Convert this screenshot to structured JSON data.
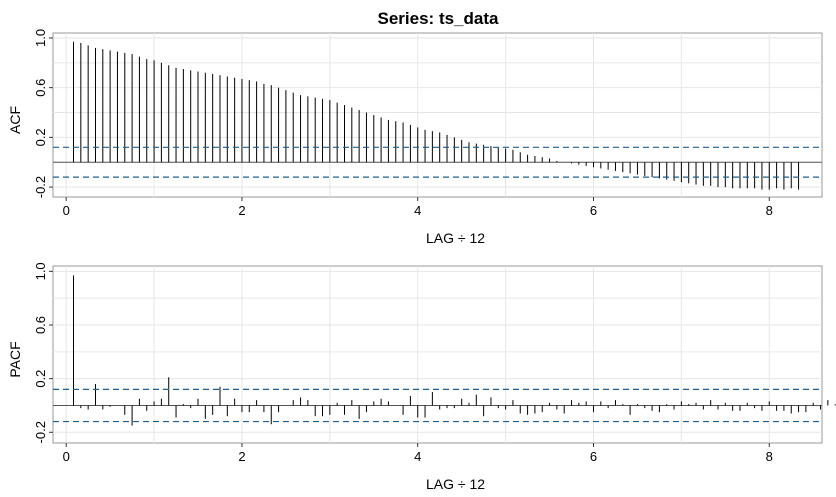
{
  "figure": {
    "title": "Series:  ts_data"
  },
  "colors": {
    "bar": "#000000",
    "ci_line": "#1f5f8b",
    "grid": "#e6e6e6",
    "frame": "#999999",
    "zero": "#555555"
  },
  "chart_data": [
    {
      "type": "bar",
      "name": "acf-panel",
      "title": "Series:  ts_data",
      "xlabel": "LAG ÷ 12",
      "ylabel": "ACF",
      "xlim": [
        -0.15,
        8.6
      ],
      "ylim": [
        -0.28,
        1.04
      ],
      "xticks": [
        0,
        2,
        4,
        6,
        8
      ],
      "xtick_labels": [
        "0",
        "2",
        "4",
        "6",
        "8"
      ],
      "yticks": [
        -0.2,
        0.2,
        0.6,
        1.0
      ],
      "ytick_labels": [
        "-0.2",
        "0.2",
        "0.6",
        "1.0"
      ],
      "grid": true,
      "ci_band": [
        -0.12,
        0.12
      ],
      "x_step": 0.0833333,
      "values": [
        0.97,
        0.96,
        0.94,
        0.92,
        0.91,
        0.9,
        0.89,
        0.88,
        0.87,
        0.85,
        0.83,
        0.82,
        0.8,
        0.78,
        0.76,
        0.75,
        0.74,
        0.73,
        0.72,
        0.71,
        0.7,
        0.69,
        0.68,
        0.67,
        0.66,
        0.65,
        0.63,
        0.62,
        0.6,
        0.58,
        0.56,
        0.54,
        0.53,
        0.52,
        0.51,
        0.5,
        0.48,
        0.46,
        0.44,
        0.42,
        0.4,
        0.38,
        0.36,
        0.34,
        0.33,
        0.32,
        0.3,
        0.28,
        0.26,
        0.25,
        0.24,
        0.22,
        0.2,
        0.18,
        0.16,
        0.15,
        0.14,
        0.13,
        0.12,
        0.11,
        0.1,
        0.08,
        0.06,
        0.05,
        0.04,
        0.03,
        0.01,
        0.0,
        -0.01,
        -0.02,
        -0.03,
        -0.04,
        -0.05,
        -0.06,
        -0.07,
        -0.08,
        -0.09,
        -0.1,
        -0.11,
        -0.12,
        -0.13,
        -0.14,
        -0.15,
        -0.16,
        -0.17,
        -0.18,
        -0.19,
        -0.19,
        -0.2,
        -0.2,
        -0.21,
        -0.21,
        -0.21,
        -0.21,
        -0.22,
        -0.22,
        -0.21,
        -0.22,
        -0.21,
        -0.22
      ]
    },
    {
      "type": "bar",
      "name": "pacf-panel",
      "xlabel": "LAG ÷ 12",
      "ylabel": "PACF",
      "xlim": [
        -0.15,
        8.6
      ],
      "ylim": [
        -0.28,
        1.04
      ],
      "xticks": [
        0,
        2,
        4,
        6,
        8
      ],
      "xtick_labels": [
        "0",
        "2",
        "4",
        "6",
        "8"
      ],
      "yticks": [
        -0.2,
        0.2,
        0.6,
        1.0
      ],
      "ytick_labels": [
        "-0.2",
        "0.2",
        "0.6",
        "1.0"
      ],
      "grid": true,
      "ci_band": [
        -0.12,
        0.12
      ],
      "x_step": 0.0833333,
      "values": [
        0.97,
        -0.02,
        -0.03,
        0.16,
        -0.03,
        -0.01,
        0.0,
        -0.07,
        -0.15,
        0.05,
        -0.04,
        0.03,
        0.05,
        0.21,
        -0.09,
        0.01,
        -0.02,
        0.05,
        -0.1,
        -0.07,
        0.14,
        -0.08,
        0.05,
        -0.05,
        -0.05,
        0.04,
        -0.05,
        -0.14,
        -0.05,
        0.0,
        0.04,
        0.06,
        0.04,
        -0.08,
        -0.08,
        -0.07,
        0.02,
        -0.07,
        0.04,
        -0.1,
        -0.05,
        0.03,
        0.05,
        0.03,
        0.0,
        -0.07,
        0.07,
        -0.09,
        -0.09,
        0.1,
        -0.03,
        -0.02,
        -0.02,
        0.05,
        0.02,
        0.08,
        -0.08,
        0.06,
        -0.02,
        -0.03,
        0.04,
        -0.06,
        -0.07,
        -0.06,
        -0.05,
        0.02,
        -0.03,
        -0.06,
        0.04,
        0.02,
        0.03,
        -0.05,
        0.03,
        -0.02,
        0.04,
        0.01,
        -0.07,
        0.01,
        -0.02,
        -0.04,
        -0.05,
        0.01,
        -0.03,
        0.03,
        0.01,
        0.02,
        -0.03,
        0.04,
        -0.03,
        0.02,
        -0.04,
        -0.04,
        0.02,
        -0.02,
        -0.04,
        0.03,
        -0.04,
        -0.04,
        -0.06,
        -0.05,
        -0.05,
        0.02,
        -0.03,
        0.04,
        0.01,
        0.03,
        -0.03,
        -0.06,
        0.02,
        -0.05,
        -0.04,
        -0.03,
        0.03,
        0.01,
        -0.04,
        -0.03,
        -0.02,
        0.02,
        0.03,
        -0.04,
        -0.07,
        0.04,
        -0.03,
        -0.02,
        0.03,
        0.04,
        -0.07,
        0.0,
        -0.02,
        -0.06,
        0.0,
        0.02,
        -0.01,
        -0.01,
        0.03,
        0.01,
        0.03,
        0.02,
        0.04,
        0.03,
        -0.02,
        0.05,
        0.01,
        0.03,
        0.02,
        -0.02,
        0.01,
        0.02,
        -0.02,
        0.03,
        0.04,
        0.02,
        -0.05,
        -0.05,
        -0.04,
        0.02,
        -0.04,
        0.01,
        -0.05,
        -0.06
      ]
    }
  ]
}
